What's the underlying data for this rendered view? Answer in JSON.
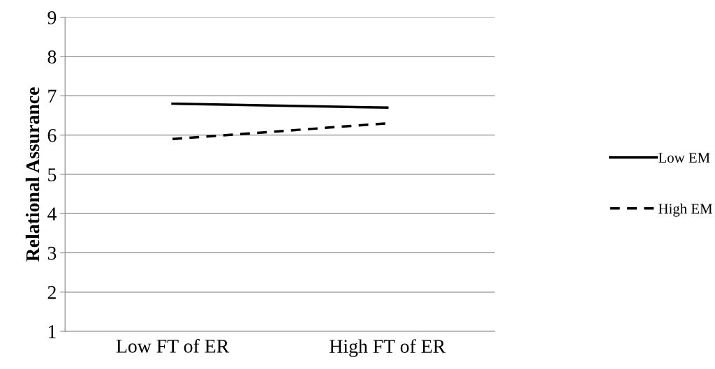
{
  "chart_data": {
    "type": "line",
    "ylabel": "Relational Assurance",
    "categories": [
      "Low FT of ER",
      "High FT of ER"
    ],
    "series": [
      {
        "name": "Low EM",
        "color": "#000000",
        "line_style": "solid",
        "values": [
          6.8,
          6.7
        ]
      },
      {
        "name": "High EM",
        "color": "#000000",
        "line_style": "dashed",
        "values": [
          5.9,
          6.3
        ]
      }
    ],
    "ylim": [
      1,
      9
    ],
    "yticks": [
      1,
      2,
      3,
      4,
      5,
      6,
      7,
      8,
      9
    ],
    "grid": "y",
    "legend": "right",
    "marker": "none"
  }
}
